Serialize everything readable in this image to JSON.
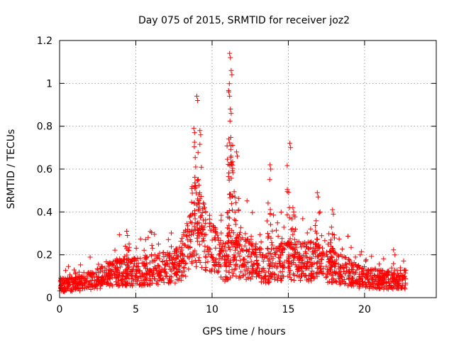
{
  "chart_data": {
    "type": "scatter",
    "title": "Day 075 of 2015, SRMTID for receiver joz2",
    "xlabel": "GPS time / hours",
    "ylabel": "SRMTID / TECUs",
    "xlim": [
      0,
      24.7
    ],
    "ylim": [
      0,
      1.2
    ],
    "xticks": [
      0,
      5,
      10,
      15,
      20
    ],
    "xtick_labels": [
      "0",
      "5",
      "10",
      "15",
      "20"
    ],
    "yticks": [
      0,
      0.2,
      0.4,
      0.6,
      0.8,
      1.0,
      1.2
    ],
    "ytick_labels": [
      "0",
      "0.2",
      "0.4",
      "0.6",
      "0.8",
      "1",
      "1.2"
    ],
    "grid": true,
    "marker": "+",
    "color": "#ff0000",
    "baseline_profile": {
      "x": [
        0,
        1,
        2,
        3,
        4,
        5,
        6,
        7,
        7.8,
        8.3,
        8.8,
        9.3,
        9.8,
        10.3,
        10.8,
        11.3,
        11.8,
        12.5,
        13.5,
        14.5,
        15.5,
        16.5,
        17.5,
        18.5,
        19.5,
        20.5,
        21.5,
        22.7
      ],
      "y": [
        0.06,
        0.06,
        0.08,
        0.1,
        0.12,
        0.12,
        0.13,
        0.14,
        0.15,
        0.22,
        0.3,
        0.3,
        0.26,
        0.2,
        0.16,
        0.2,
        0.2,
        0.17,
        0.15,
        0.17,
        0.17,
        0.17,
        0.15,
        0.13,
        0.1,
        0.09,
        0.08,
        0.09
      ]
    },
    "peaks": [
      {
        "x": 4.4,
        "y": 0.31
      },
      {
        "x": 8.8,
        "y": 0.79
      },
      {
        "x": 9.0,
        "y": 0.94
      },
      {
        "x": 9.2,
        "y": 0.78
      },
      {
        "x": 11.15,
        "y": 1.14
      },
      {
        "x": 11.25,
        "y": 1.06
      },
      {
        "x": 11.1,
        "y": 0.96
      },
      {
        "x": 11.2,
        "y": 0.88
      },
      {
        "x": 11.6,
        "y": 0.68
      },
      {
        "x": 13.8,
        "y": 0.62
      },
      {
        "x": 15.1,
        "y": 0.72
      },
      {
        "x": 15.3,
        "y": 0.42
      },
      {
        "x": 16.9,
        "y": 0.49
      },
      {
        "x": 17.9,
        "y": 0.41
      }
    ],
    "point_count": 1800
  }
}
